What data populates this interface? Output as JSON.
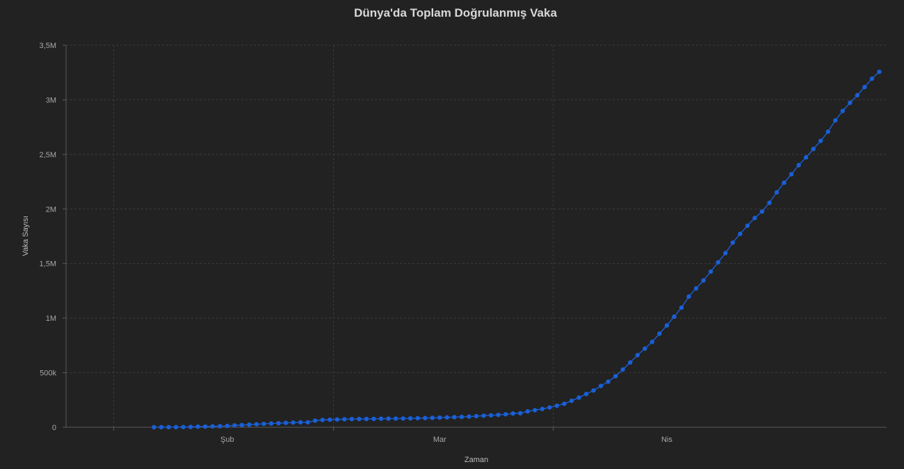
{
  "chart_data": {
    "type": "line",
    "title": "Dünya'da Toplam Doğrulanmış Vaka",
    "xlabel": "Zaman",
    "ylabel": "Vaka Sayısı",
    "ylim": [
      0,
      3500000
    ],
    "y_ticks": [
      {
        "value": 0,
        "label": "0"
      },
      {
        "value": 500000,
        "label": "500k"
      },
      {
        "value": 1000000,
        "label": "1M"
      },
      {
        "value": 1500000,
        "label": "1,5M"
      },
      {
        "value": 2000000,
        "label": "2M"
      },
      {
        "value": 2500000,
        "label": "2,5M"
      },
      {
        "value": 3000000,
        "label": "3M"
      },
      {
        "value": 3500000,
        "label": "3,5M"
      }
    ],
    "x_range": [
      "2020-01-10",
      "2020-05-01"
    ],
    "x_ticks": [
      {
        "date": "2020-02-01",
        "label": "Şub"
      },
      {
        "date": "2020-03-01",
        "label": "Mar"
      },
      {
        "date": "2020-04-01",
        "label": "Nis"
      }
    ],
    "grid": true,
    "color": "#1a5fd6",
    "series": [
      {
        "x": [
          "2020-01-22",
          "2020-01-23",
          "2020-01-24",
          "2020-01-25",
          "2020-01-26",
          "2020-01-27",
          "2020-01-28",
          "2020-01-29",
          "2020-01-30",
          "2020-01-31",
          "2020-02-01",
          "2020-02-02",
          "2020-02-03",
          "2020-02-04",
          "2020-02-05",
          "2020-02-06",
          "2020-02-07",
          "2020-02-08",
          "2020-02-09",
          "2020-02-10",
          "2020-02-11",
          "2020-02-12",
          "2020-02-13",
          "2020-02-14",
          "2020-02-15",
          "2020-02-16",
          "2020-02-17",
          "2020-02-18",
          "2020-02-19",
          "2020-02-20",
          "2020-02-21",
          "2020-02-22",
          "2020-02-23",
          "2020-02-24",
          "2020-02-25",
          "2020-02-26",
          "2020-02-27",
          "2020-02-28",
          "2020-02-29",
          "2020-03-01",
          "2020-03-02",
          "2020-03-03",
          "2020-03-04",
          "2020-03-05",
          "2020-03-06",
          "2020-03-07",
          "2020-03-08",
          "2020-03-09",
          "2020-03-10",
          "2020-03-11",
          "2020-03-12",
          "2020-03-13",
          "2020-03-14",
          "2020-03-15",
          "2020-03-16",
          "2020-03-17",
          "2020-03-18",
          "2020-03-19",
          "2020-03-20",
          "2020-03-21",
          "2020-03-22",
          "2020-03-23",
          "2020-03-24",
          "2020-03-25",
          "2020-03-26",
          "2020-03-27",
          "2020-03-28",
          "2020-03-29",
          "2020-03-30",
          "2020-03-31",
          "2020-04-01",
          "2020-04-02",
          "2020-04-03",
          "2020-04-04",
          "2020-04-05",
          "2020-04-06",
          "2020-04-07",
          "2020-04-08",
          "2020-04-09",
          "2020-04-10",
          "2020-04-11",
          "2020-04-12",
          "2020-04-13",
          "2020-04-14",
          "2020-04-15",
          "2020-04-16",
          "2020-04-17",
          "2020-04-18",
          "2020-04-19",
          "2020-04-20",
          "2020-04-21",
          "2020-04-22",
          "2020-04-23",
          "2020-04-24",
          "2020-04-25",
          "2020-04-26",
          "2020-04-27",
          "2020-04-28",
          "2020-04-29",
          "2020-04-30"
        ],
        "y": [
          555,
          654,
          941,
          1434,
          2118,
          2927,
          5578,
          6166,
          8234,
          9927,
          12038,
          16787,
          19881,
          23892,
          27635,
          30794,
          34391,
          37120,
          40150,
          42762,
          44802,
          45221,
          60368,
          66885,
          69030,
          71224,
          73258,
          75136,
          75639,
          76197,
          76819,
          78572,
          78958,
          79561,
          80406,
          81388,
          82746,
          84112,
          86011,
          88369,
          90306,
          92840,
          95120,
          97886,
          101801,
          105847,
          109821,
          113590,
          118620,
          125875,
          128343,
          145193,
          156099,
          167447,
          181546,
          197168,
          214915,
          242713,
          272167,
          304528,
          337020,
          378287,
          418045,
          467653,
          529591,
          593291,
          660706,
          720117,
          782365,
          857487,
          932605,
          1013157,
          1095917,
          1197405,
          1272115,
          1345101,
          1426096,
          1511104,
          1595350,
          1691719,
          1771514,
          1846680,
          1917320,
          1976191,
          2056054,
          2152437,
          2240190,
          2317758,
          2401379,
          2472259,
          2549294,
          2624074,
          2708403,
          2811193,
          2897645,
          2972365,
          3041764,
          3116398,
          3193886,
          3256846
        ]
      }
    ]
  }
}
